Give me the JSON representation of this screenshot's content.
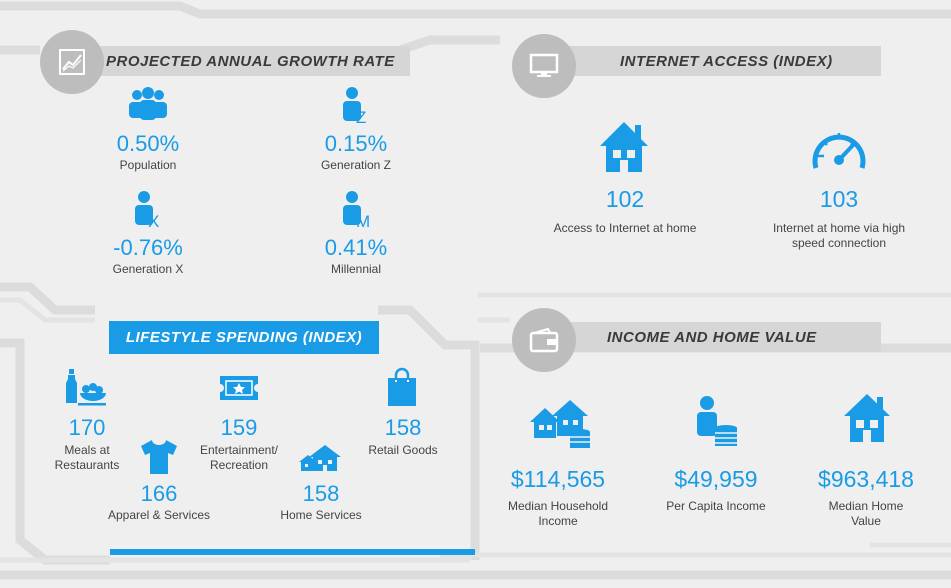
{
  "sections": {
    "growth": {
      "title": "PROJECTED ANNUAL GROWTH RATE",
      "items": [
        {
          "value": "0.50%",
          "label": "Population",
          "icon": "people-icon"
        },
        {
          "value": "0.15%",
          "label": "Generation Z",
          "icon": "person-z-icon"
        },
        {
          "value": "-0.76%",
          "label": "Generation X",
          "icon": "person-x-icon"
        },
        {
          "value": "0.41%",
          "label": "Millennial",
          "icon": "person-m-icon"
        }
      ]
    },
    "internet": {
      "title": "INTERNET ACCESS (INDEX)",
      "items": [
        {
          "value": "102",
          "label": "Access to Internet at home",
          "icon": "house-icon"
        },
        {
          "value": "103",
          "label_lines": [
            "Internet at home via high",
            "speed connection"
          ],
          "icon": "speedometer-icon"
        }
      ]
    },
    "lifestyle": {
      "title": "LIFESTYLE SPENDING (INDEX)",
      "items": [
        {
          "value": "170",
          "label_lines": [
            "Meals at",
            "Restaurants"
          ],
          "icon": "meal-icon"
        },
        {
          "value": "159",
          "label_lines": [
            "Entertainment/",
            "Recreation"
          ],
          "icon": "ticket-icon"
        },
        {
          "value": "158",
          "label": "Retail Goods",
          "icon": "shopping-bag-icon"
        },
        {
          "value": "166",
          "label": "Apparel & Services",
          "icon": "tshirt-icon"
        },
        {
          "value": "158",
          "label": "Home Services",
          "icon": "home-services-icon"
        }
      ]
    },
    "income": {
      "title": "INCOME AND HOME VALUE",
      "items": [
        {
          "value": "$114,565",
          "label_lines": [
            "Median Household",
            "Income"
          ],
          "icon": "houses-coins-icon"
        },
        {
          "value": "$49,959",
          "label": "Per Capita Income",
          "icon": "person-coins-icon"
        },
        {
          "value": "$963,418",
          "label_lines": [
            "Median Home",
            "Value"
          ],
          "icon": "house-icon"
        }
      ]
    }
  },
  "colors": {
    "accent": "#1a9be6",
    "header_bar": "#d6d6d6",
    "circle": "#bdbdbd",
    "background": "#efefef"
  }
}
